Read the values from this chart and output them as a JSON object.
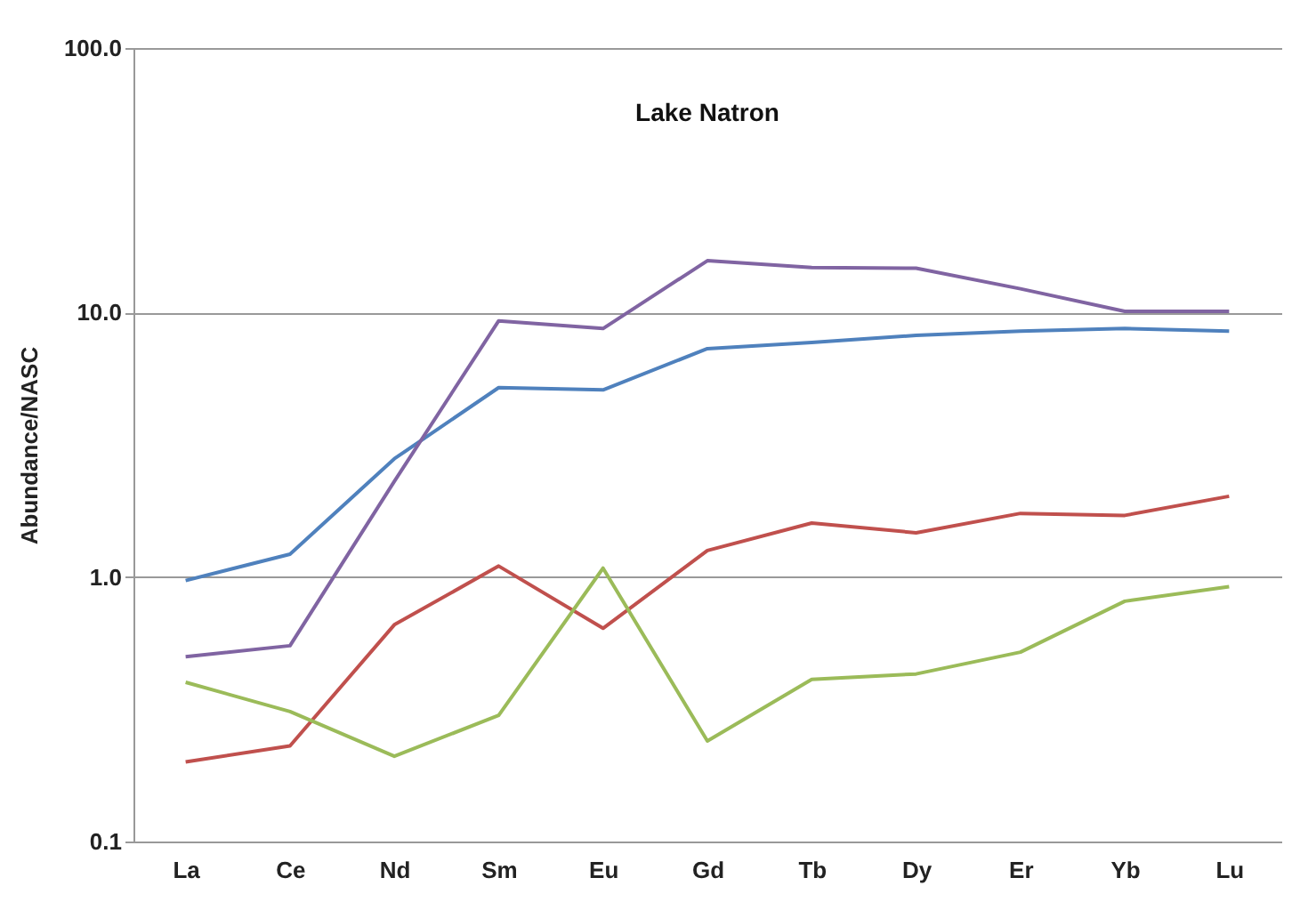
{
  "chart_data": {
    "type": "line",
    "title": "Lake Natron",
    "ylabel": "Abundance/NASC",
    "log": true,
    "grid": "y",
    "legend": false,
    "categories": [
      "La",
      "Ce",
      "Nd",
      "Sm",
      "Eu",
      "Gd",
      "Tb",
      "Dy",
      "Er",
      "Yb",
      "Lu"
    ],
    "ylim": [
      0.1,
      100
    ],
    "yticks": [
      {
        "value": 0.1,
        "label": "0.1"
      },
      {
        "value": 1,
        "label": "1.0"
      },
      {
        "value": 10,
        "label": "10.0"
      },
      {
        "value": 100,
        "label": "100.0"
      }
    ],
    "series": [
      {
        "color": "#4f81bd",
        "values": [
          0.97,
          1.22,
          2.8,
          5.2,
          5.1,
          7.3,
          7.7,
          8.2,
          8.5,
          8.7,
          8.5
        ]
      },
      {
        "color": "#c0504d",
        "values": [
          0.2,
          0.23,
          0.66,
          1.1,
          0.64,
          1.26,
          1.6,
          1.47,
          1.74,
          1.71,
          2.02
        ]
      },
      {
        "color": "#9bbb59",
        "values": [
          0.4,
          0.31,
          0.21,
          0.3,
          1.08,
          0.24,
          0.41,
          0.43,
          0.52,
          0.81,
          0.92
        ]
      },
      {
        "color": "#8064a2",
        "values": [
          0.5,
          0.55,
          2.3,
          9.3,
          8.7,
          15.7,
          14.8,
          14.7,
          12.3,
          10.1,
          10.1
        ]
      }
    ]
  }
}
